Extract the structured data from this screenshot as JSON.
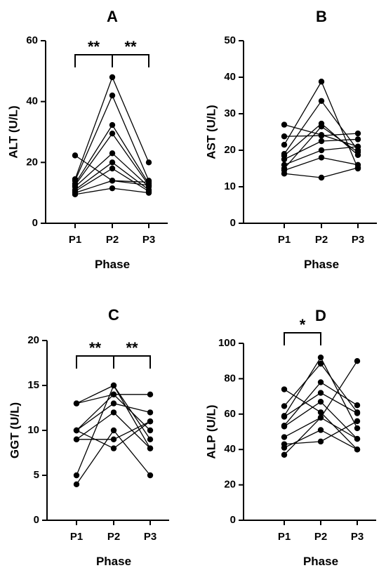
{
  "chart_data": [
    {
      "panel": "A",
      "type": "line",
      "ylabel": "ALT (U/L)",
      "xlabel": "Phase",
      "categories": [
        "P1",
        "P2",
        "P3"
      ],
      "ylim": [
        0,
        60
      ],
      "yticks": [
        0,
        20,
        40,
        60
      ],
      "series": [
        {
          "values": [
            22.3,
            14,
            12.5
          ]
        },
        {
          "values": [
            14.5,
            48,
            20
          ]
        },
        {
          "values": [
            14,
            42,
            14
          ]
        },
        {
          "values": [
            13,
            32.3,
            13
          ]
        },
        {
          "values": [
            12.5,
            29.5,
            12.5
          ]
        },
        {
          "values": [
            12,
            23,
            12
          ]
        },
        {
          "values": [
            11,
            20,
            11
          ]
        },
        {
          "values": [
            10.5,
            18,
            10.5
          ]
        },
        {
          "values": [
            10,
            14,
            13.5
          ]
        },
        {
          "values": [
            9.5,
            11.5,
            10
          ]
        }
      ],
      "annotations": [
        {
          "from": "P1",
          "to": "P2",
          "label": "**"
        },
        {
          "from": "P2",
          "to": "P3",
          "label": "**"
        }
      ]
    },
    {
      "panel": "B",
      "type": "line",
      "ylabel": "AST (U/L)",
      "xlabel": "Phase",
      "categories": [
        "P1",
        "P2",
        "P3"
      ],
      "ylim": [
        0,
        50
      ],
      "yticks": [
        0,
        10,
        20,
        30,
        40,
        50
      ],
      "series": [
        {
          "values": [
            27,
            24.2,
            21
          ]
        },
        {
          "values": [
            23.8,
            24,
            24.6
          ]
        },
        {
          "values": [
            21.5,
            38.8,
            15
          ]
        },
        {
          "values": [
            19,
            33.5,
            20
          ]
        },
        {
          "values": [
            18.5,
            27.3,
            18.7
          ]
        },
        {
          "values": [
            17.5,
            22.5,
            23
          ]
        },
        {
          "values": [
            16,
            20,
            21
          ]
        },
        {
          "values": [
            15,
            26.5,
            19.5
          ]
        },
        {
          "values": [
            14.5,
            18,
            16
          ]
        },
        {
          "values": [
            13.6,
            12.5,
            15.2
          ]
        }
      ],
      "annotations": []
    },
    {
      "panel": "C",
      "type": "line",
      "ylabel": "GGT (U/L)",
      "xlabel": "Phase",
      "categories": [
        "P1",
        "P2",
        "P3"
      ],
      "ylim": [
        0,
        20
      ],
      "yticks": [
        0,
        5,
        10,
        15,
        20
      ],
      "series": [
        {
          "values": [
            13,
            15,
            9
          ]
        },
        {
          "values": [
            13,
            14,
            14
          ]
        },
        {
          "values": [
            10,
            13,
            12
          ]
        },
        {
          "values": [
            10,
            14,
            10
          ]
        },
        {
          "values": [
            9,
            12,
            8
          ]
        },
        {
          "values": [
            9,
            9,
            11
          ]
        },
        {
          "values": [
            5,
            15,
            8
          ]
        },
        {
          "values": [
            4,
            10,
            5
          ]
        },
        {
          "values": [
            10,
            8,
            11
          ]
        }
      ],
      "annotations": [
        {
          "from": "P1",
          "to": "P2",
          "label": "**"
        },
        {
          "from": "P2",
          "to": "P3",
          "label": "**"
        }
      ]
    },
    {
      "panel": "D",
      "type": "line",
      "ylabel": "ALP (U/L)",
      "xlabel": "Phase",
      "categories": [
        "P1",
        "P2",
        "P3"
      ],
      "ylim": [
        0,
        100
      ],
      "yticks": [
        0,
        20,
        40,
        60,
        80,
        100
      ],
      "series": [
        {
          "values": [
            74,
            61,
            40
          ]
        },
        {
          "values": [
            64.5,
            88.5,
            61
          ]
        },
        {
          "values": [
            59,
            92,
            52
          ]
        },
        {
          "values": [
            58.5,
            72,
            60.5
          ]
        },
        {
          "values": [
            53.5,
            78,
            65
          ]
        },
        {
          "values": [
            53,
            67,
            46
          ]
        },
        {
          "values": [
            47,
            58,
            90
          ]
        },
        {
          "values": [
            43,
            44.5,
            56
          ]
        },
        {
          "values": [
            41,
            51,
            40
          ]
        },
        {
          "values": [
            37,
            58,
            46
          ]
        }
      ],
      "annotations": [
        {
          "from": "P1",
          "to": "P2",
          "label": "*"
        }
      ]
    }
  ]
}
